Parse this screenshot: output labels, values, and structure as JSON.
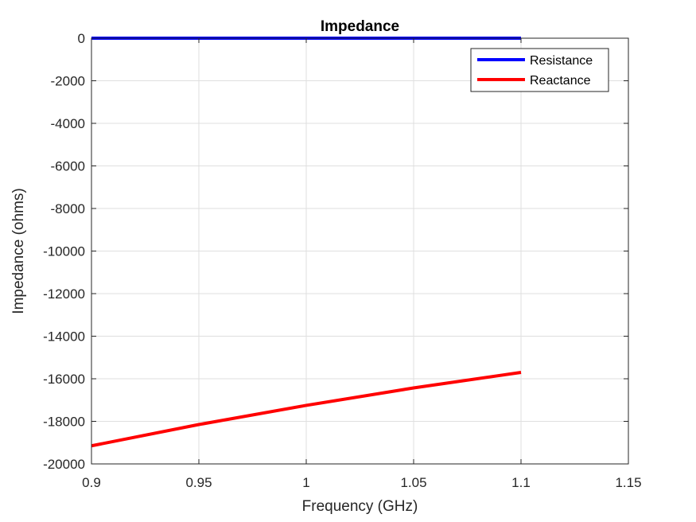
{
  "chart_data": {
    "type": "line",
    "title": "Impedance",
    "xlabel": "Frequency (GHz)",
    "ylabel": "Impedance (ohms)",
    "xlim": [
      0.9,
      1.15
    ],
    "ylim": [
      -20000,
      0
    ],
    "xticks": [
      0.9,
      0.95,
      1,
      1.05,
      1.1,
      1.15
    ],
    "xtick_labels": [
      "0.9",
      "0.95",
      "1",
      "1.05",
      "1.1",
      "1.15"
    ],
    "yticks": [
      0,
      -2000,
      -4000,
      -6000,
      -8000,
      -10000,
      -12000,
      -14000,
      -16000,
      -18000,
      -20000
    ],
    "ytick_labels": [
      "0",
      "-2000",
      "-4000",
      "-6000",
      "-8000",
      "-10000",
      "-12000",
      "-14000",
      "-16000",
      "-18000",
      "-20000"
    ],
    "grid": true,
    "legend_position": "top-right",
    "series": [
      {
        "name": "Resistance",
        "color": "#0000ff",
        "x": [
          0.9,
          0.95,
          1.0,
          1.05,
          1.1
        ],
        "y": [
          0,
          0,
          0,
          0,
          0
        ]
      },
      {
        "name": "Reactance",
        "color": "#ff0000",
        "x": [
          0.9,
          0.95,
          1.0,
          1.05,
          1.1
        ],
        "y": [
          -19150,
          -18150,
          -17250,
          -16430,
          -15700
        ]
      }
    ]
  }
}
